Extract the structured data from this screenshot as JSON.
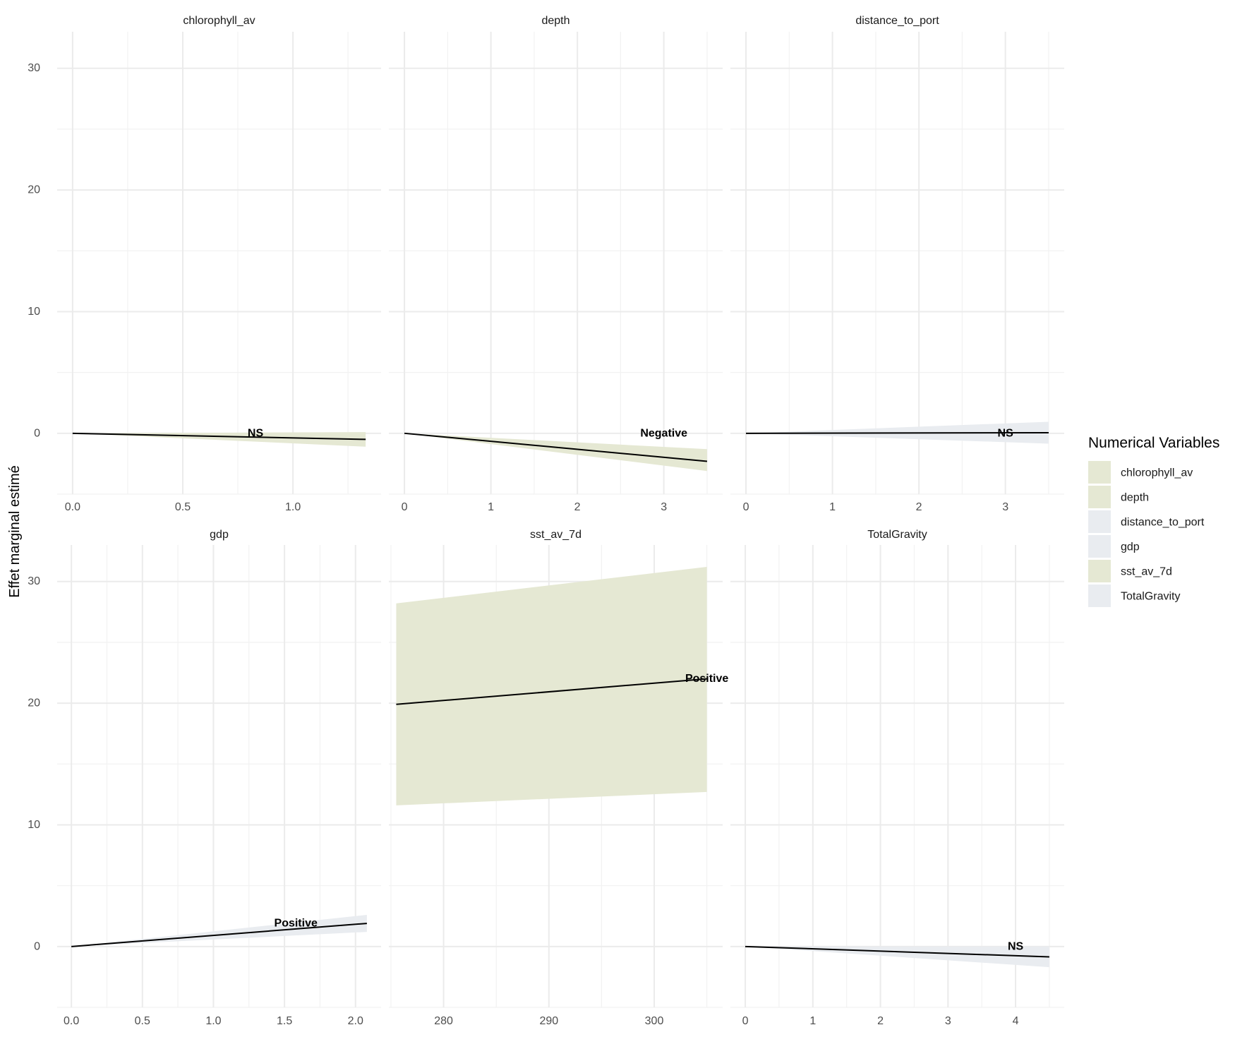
{
  "chart_data": {
    "type": "line",
    "ylabel": "Effet marginal estimé",
    "ylim": [
      -5,
      33
    ],
    "yticks": [
      0,
      10,
      20,
      30
    ],
    "legend": {
      "title": "Numerical Variables",
      "placement": "right",
      "entries": [
        {
          "name": "chlorophyll_av",
          "color": "#e5e8d3"
        },
        {
          "name": "depth",
          "color": "#e5e8d3"
        },
        {
          "name": "distance_to_port",
          "color": "#e9ecf0"
        },
        {
          "name": "gdp",
          "color": "#e9ecf0"
        },
        {
          "name": "sst_av_7d",
          "color": "#e5e8d3"
        },
        {
          "name": "TotalGravity",
          "color": "#e9ecf0"
        }
      ]
    },
    "line_color": "#000000",
    "grid": true,
    "panels": [
      {
        "strip": "chlorophyll_av",
        "xlim": [
          -0.07,
          1.4
        ],
        "xticks": [
          "0.0",
          "0.5",
          "1.0"
        ],
        "xtick_values": [
          0,
          0.5,
          1.0
        ],
        "fill": "#e5e8d3",
        "x": [
          0,
          1.33
        ],
        "y": [
          0,
          -0.5
        ],
        "ymin": [
          0,
          -1.1
        ],
        "ymax": [
          0,
          0.1
        ],
        "label": "NS",
        "label_x": 0.83,
        "label_y": 0
      },
      {
        "strip": "depth",
        "xlim": [
          -0.18,
          3.68
        ],
        "xticks": [
          "0",
          "1",
          "2",
          "3"
        ],
        "xtick_values": [
          0,
          1,
          2,
          3
        ],
        "fill": "#e5e8d3",
        "x": [
          0,
          3.5
        ],
        "y": [
          0,
          -2.3
        ],
        "ymin": [
          0,
          -3.1
        ],
        "ymax": [
          0,
          -1.3
        ],
        "label": "Negative",
        "label_x": 3.0,
        "label_y": 0
      },
      {
        "strip": "distance_to_port",
        "xlim": [
          -0.18,
          3.68
        ],
        "xticks": [
          "0",
          "1",
          "2",
          "3"
        ],
        "xtick_values": [
          0,
          1,
          2,
          3
        ],
        "fill": "#e9ecf0",
        "x": [
          0,
          3.5
        ],
        "y": [
          0,
          0.05
        ],
        "ymin": [
          0,
          -0.85
        ],
        "ymax": [
          0,
          0.95
        ],
        "label": "NS",
        "label_x": 3.0,
        "label_y": 0
      },
      {
        "strip": "gdp",
        "xlim": [
          -0.1,
          2.18
        ],
        "xticks": [
          "0.0",
          "0.5",
          "1.0",
          "1.5",
          "2.0"
        ],
        "xtick_values": [
          0,
          0.5,
          1.0,
          1.5,
          2.0
        ],
        "fill": "#e9ecf0",
        "x": [
          0,
          2.08
        ],
        "y": [
          0,
          1.9
        ],
        "ymin": [
          0,
          1.2
        ],
        "ymax": [
          0,
          2.6
        ],
        "label": "Positive",
        "label_x": 1.58,
        "label_y": 1.9
      },
      {
        "strip": "sst_av_7d",
        "xlim": [
          274.8,
          306.5
        ],
        "xticks": [
          "280",
          "290",
          "300"
        ],
        "xtick_values": [
          280,
          290,
          300
        ],
        "fill": "#e5e8d3",
        "x": [
          275.5,
          305
        ],
        "y": [
          19.9,
          22.0
        ],
        "ymin": [
          11.6,
          12.7
        ],
        "ymax": [
          28.2,
          31.2
        ],
        "label": "Positive",
        "label_x": 305,
        "label_y": 22.0
      },
      {
        "strip": "TotalGravity",
        "xlim": [
          -0.22,
          4.72
        ],
        "xticks": [
          "0",
          "1",
          "2",
          "3",
          "4"
        ],
        "xtick_values": [
          0,
          1,
          2,
          3,
          4
        ],
        "fill": "#e9ecf0",
        "x": [
          0,
          4.5
        ],
        "y": [
          0,
          -0.85
        ],
        "ymin": [
          0,
          -1.7
        ],
        "ymax": [
          0,
          0
        ],
        "label": "NS",
        "label_x": 4.0,
        "label_y": 0
      }
    ]
  }
}
